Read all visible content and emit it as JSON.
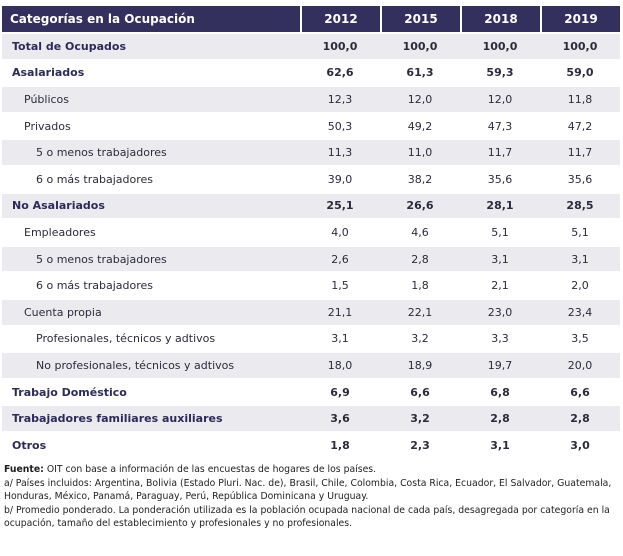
{
  "table": {
    "header": [
      "Categorías en la Ocupación",
      "2012",
      "2015",
      "2018",
      "2019"
    ],
    "rows": [
      {
        "label": "Total de Ocupados",
        "values": [
          "100,0",
          "100,0",
          "100,0",
          "100,0"
        ],
        "bold": true,
        "level": 0
      },
      {
        "label": "Asalariados",
        "values": [
          "62,6",
          "61,3",
          "59,3",
          "59,0"
        ],
        "bold": true,
        "level": 0
      },
      {
        "label": "Públicos",
        "values": [
          "12,3",
          "12,0",
          "12,0",
          "11,8"
        ],
        "bold": false,
        "level": 1
      },
      {
        "label": "Privados",
        "values": [
          "50,3",
          "49,2",
          "47,3",
          "47,2"
        ],
        "bold": false,
        "level": 1
      },
      {
        "label": "5 o menos trabajadores",
        "values": [
          "11,3",
          "11,0",
          "11,7",
          "11,7"
        ],
        "bold": false,
        "level": 2
      },
      {
        "label": "6 o más trabajadores",
        "values": [
          "39,0",
          "38,2",
          "35,6",
          "35,6"
        ],
        "bold": false,
        "level": 2
      },
      {
        "label": "No Asalariados",
        "values": [
          "25,1",
          "26,6",
          "28,1",
          "28,5"
        ],
        "bold": true,
        "level": 0
      },
      {
        "label": "Empleadores",
        "values": [
          "4,0",
          "4,6",
          "5,1",
          "5,1"
        ],
        "bold": false,
        "level": 1
      },
      {
        "label": "5 o menos trabajadores",
        "values": [
          "2,6",
          "2,8",
          "3,1",
          "3,1"
        ],
        "bold": false,
        "level": 2
      },
      {
        "label": "6 o más trabajadores",
        "values": [
          "1,5",
          "1,8",
          "2,1",
          "2,0"
        ],
        "bold": false,
        "level": 2
      },
      {
        "label": "Cuenta propia",
        "values": [
          "21,1",
          "22,1",
          "23,0",
          "23,4"
        ],
        "bold": false,
        "level": 1
      },
      {
        "label": "Profesionales, técnicos y adtivos",
        "values": [
          "3,1",
          "3,2",
          "3,3",
          "3,5"
        ],
        "bold": false,
        "level": 2
      },
      {
        "label": "No profesionales, técnicos y adtivos",
        "values": [
          "18,0",
          "18,9",
          "19,7",
          "20,0"
        ],
        "bold": false,
        "level": 2
      },
      {
        "label": "Trabajo Doméstico",
        "values": [
          "6,9",
          "6,6",
          "6,8",
          "6,6"
        ],
        "bold": true,
        "level": 0
      },
      {
        "label": "Trabajadores familiares auxiliares",
        "values": [
          "3,6",
          "3,2",
          "2,8",
          "2,8"
        ],
        "bold": true,
        "level": 0
      },
      {
        "label": "Otros",
        "values": [
          "1,8",
          "2,3",
          "3,1",
          "3,0"
        ],
        "bold": true,
        "level": 0
      }
    ]
  },
  "notes": {
    "source_label": "Fuente:",
    "source_text": " OIT con base a información de las encuestas de hogares de los países.",
    "note_a": "a/ Países incluidos: Argentina, Bolivia (Estado Pluri. Nac. de), Brasil, Chile, Colombia, Costa Rica, Ecuador, El Salvador, Guatemala, Honduras, México, Panamá, Paraguay, Perú, República Dominicana y Uruguay.",
    "note_b": "b/ Promedio ponderado. La ponderación utilizada es la población ocupada nacional de cada país, desagregada por categoría en la ocupación, tamaño del establecimiento y profesionales y no profesionales."
  },
  "colors": {
    "header_bg": "#34305e",
    "stripe_bg": "#ebebef",
    "bold_text": "#2c2a57"
  }
}
